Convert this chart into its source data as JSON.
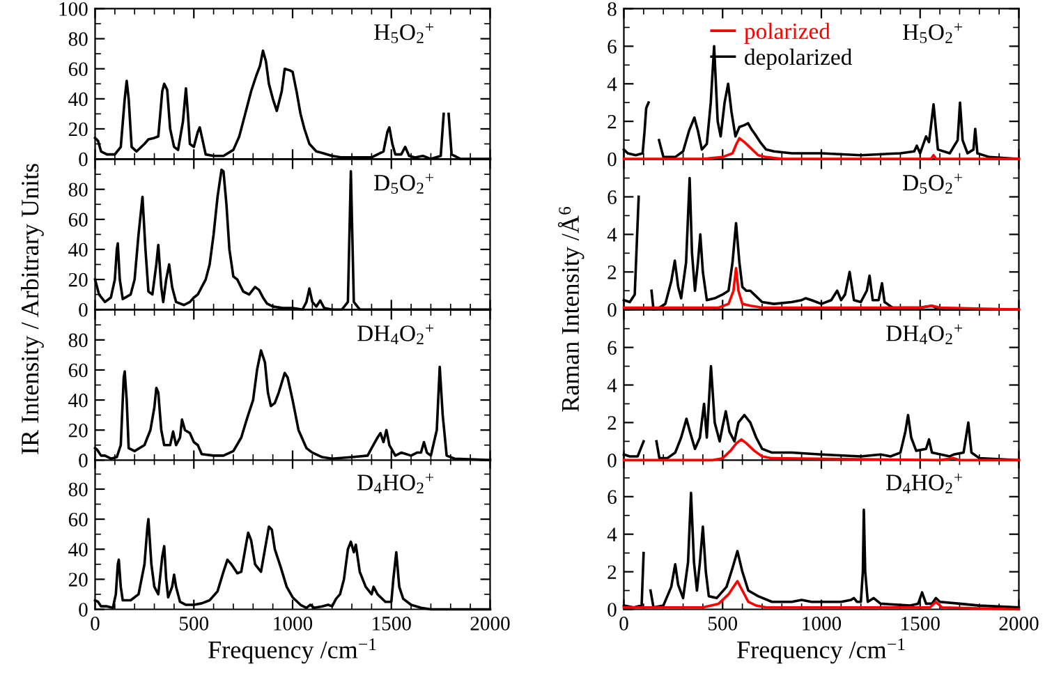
{
  "chart_data": [
    {
      "type": "line",
      "title": "H$_{5}$O$_{2}$$^{+}$",
      "ylabel": "IR Intensity / Arbitrary Units",
      "xlim": [
        0,
        2000
      ],
      "xticks": [
        0,
        500,
        1000,
        1500,
        2000
      ],
      "ylim": [
        0,
        100
      ],
      "yticks": [
        0,
        20,
        40,
        60,
        80,
        100
      ],
      "tick_labels": "y",
      "series": [
        {
          "color": "#000000",
          "x": [
            0,
            15,
            30,
            60,
            100,
            130,
            150,
            160,
            170,
            185,
            210,
            250,
            270,
            300,
            320,
            340,
            350,
            365,
            380,
            400,
            420,
            445,
            460,
            470,
            480,
            500,
            520,
            530,
            545,
            560,
            600,
            650,
            700,
            730,
            760,
            790,
            815,
            835,
            850,
            865,
            880,
            900,
            920,
            945,
            960,
            985,
            1000,
            1020,
            1040,
            1060,
            1085,
            1120,
            1150,
            1200,
            1250,
            1300,
            1400,
            1460,
            1480,
            1490,
            1505,
            1520,
            1550,
            1570,
            1590,
            1620,
            1660,
            1700,
            1750,
            1765,
            1778,
            1790,
            1805,
            1850,
            2000
          ],
          "values": [
            14,
            12,
            5,
            3,
            3,
            8,
            40,
            52,
            40,
            8,
            5,
            10,
            13,
            14,
            15,
            45,
            50,
            46,
            20,
            8,
            6,
            25,
            47,
            30,
            10,
            8,
            18,
            21,
            12,
            3,
            2,
            2,
            6,
            15,
            30,
            45,
            55,
            62,
            72,
            65,
            50,
            40,
            32,
            45,
            60,
            59,
            58,
            45,
            30,
            20,
            10,
            5,
            4,
            2,
            1,
            1,
            1,
            5,
            18,
            21,
            10,
            3,
            3,
            8,
            2,
            1,
            2,
            0,
            2,
            30,
            null,
            30,
            3,
            0,
            0
          ]
        }
      ]
    },
    {
      "type": "line",
      "title": "H$_{5}$O$_{2}$$^{+}$",
      "ylabel": "Raman Intensity /Å$^{6}$",
      "xlim": [
        0,
        2000
      ],
      "xticks": [
        0,
        500,
        1000,
        1500,
        2000
      ],
      "ylim": [
        0,
        8
      ],
      "yticks": [
        0,
        2,
        4,
        6,
        8
      ],
      "tick_labels": "y",
      "legend": "top",
      "series": [
        {
          "name": "polarized",
          "color": "#ff0000",
          "x": [
            0,
            400,
            500,
            550,
            570,
            585,
            610,
            640,
            680,
            720,
            800,
            1555,
            1568,
            1580,
            2000
          ],
          "values": [
            0,
            0,
            0.1,
            0.3,
            0.8,
            1.1,
            0.9,
            0.6,
            0.2,
            0.1,
            0,
            0,
            0.2,
            0,
            0
          ]
        },
        {
          "name": "depolarized",
          "color": "#000000",
          "x": [
            0,
            20,
            60,
            95,
            105,
            113,
            125,
            140,
            170,
            178,
            200,
            260,
            300,
            330,
            357,
            375,
            395,
            420,
            440,
            457,
            475,
            490,
            510,
            528,
            545,
            565,
            585,
            610,
            629,
            645,
            665,
            690,
            720,
            760,
            850,
            1000,
            1200,
            1400,
            1470,
            1483,
            1500,
            1530,
            1545,
            1568,
            1590,
            1650,
            1690,
            1702,
            1715,
            1740,
            1770,
            1779,
            1790,
            1850,
            2000
          ],
          "values": [
            0.5,
            0.3,
            0.2,
            0.3,
            1.5,
            2.7,
            3,
            null,
            null,
            1,
            0.1,
            0.1,
            0.4,
            1.5,
            2.2,
            1.5,
            0.5,
            0.8,
            3,
            6,
            2,
            1.2,
            3,
            4,
            2.5,
            1.2,
            1.7,
            1.8,
            1.9,
            1.6,
            1.3,
            0.9,
            0.5,
            0.4,
            0.3,
            0.3,
            0.2,
            0.3,
            0.4,
            0.7,
            0.3,
            1.2,
            0.9,
            2.9,
            0.5,
            0.3,
            1,
            3,
            1,
            0.3,
            0.5,
            1.6,
            0.3,
            0.1,
            0
          ]
        }
      ]
    },
    {
      "type": "line",
      "title": "D$_{5}$O$_{2}$$^{+}$",
      "xlim": [
        0,
        2000
      ],
      "xticks": [
        0,
        500,
        1000,
        1500,
        2000
      ],
      "ylim": [
        0,
        100
      ],
      "yticks": [
        0,
        20,
        40,
        60,
        80
      ],
      "tick_labels": "y",
      "series": [
        {
          "color": "#000000",
          "x": [
            0,
            20,
            50,
            80,
            100,
            110,
            115,
            125,
            140,
            180,
            200,
            220,
            240,
            255,
            270,
            290,
            310,
            320,
            335,
            345,
            360,
            375,
            390,
            410,
            450,
            480,
            500,
            520,
            540,
            560,
            580,
            600,
            620,
            640,
            650,
            665,
            680,
            700,
            720,
            750,
            780,
            810,
            830,
            850,
            870,
            900,
            950,
            1000,
            1050,
            1070,
            1085,
            1100,
            1120,
            1140,
            1160,
            1200,
            1250,
            1280,
            1295,
            1310,
            1340,
            2000
          ],
          "values": [
            20,
            10,
            5,
            8,
            20,
            40,
            44,
            20,
            7,
            10,
            20,
            50,
            75,
            40,
            12,
            10,
            30,
            43,
            15,
            5,
            20,
            30,
            15,
            5,
            3,
            5,
            8,
            10,
            15,
            20,
            30,
            50,
            75,
            93,
            92,
            70,
            40,
            22,
            20,
            12,
            10,
            15,
            13,
            8,
            4,
            2,
            1,
            1,
            0,
            5,
            14,
            5,
            2,
            6,
            1,
            0,
            0,
            5,
            92,
            5,
            0,
            0
          ]
        }
      ]
    },
    {
      "type": "line",
      "title": "D$_{5}$O$_{2}$$^{+}$",
      "xlim": [
        0,
        2000
      ],
      "xticks": [
        0,
        500,
        1000,
        1500,
        2000
      ],
      "ylim": [
        0,
        8
      ],
      "yticks": [
        0,
        2,
        4,
        6
      ],
      "tick_labels": "y",
      "series": [
        {
          "color": "#ff0000",
          "x": [
            0,
            400,
            480,
            530,
            555,
            568,
            580,
            600,
            640,
            700,
            1000,
            1300,
            1500,
            1560,
            1600,
            2000
          ],
          "values": [
            0.1,
            0.1,
            0.1,
            0.3,
            1,
            2.2,
            1,
            0.3,
            0.2,
            0.1,
            0.1,
            0.1,
            0.1,
            0.2,
            0.1,
            0
          ]
        },
        {
          "color": "#000000",
          "x": [
            0,
            30,
            55,
            75,
            85,
            130,
            140,
            150,
            180,
            210,
            240,
            258,
            275,
            290,
            315,
            333,
            345,
            360,
            375,
            387,
            400,
            420,
            460,
            500,
            530,
            550,
            568,
            585,
            600,
            620,
            640,
            660,
            700,
            760,
            850,
            900,
            920,
            950,
            1000,
            1050,
            1080,
            1100,
            1120,
            1143,
            1165,
            1200,
            1230,
            1244,
            1260,
            1290,
            1307,
            1320,
            1360,
            1500,
            1560,
            1580,
            1620,
            2000
          ],
          "values": [
            0.5,
            0.4,
            0.8,
            6,
            null,
            null,
            1,
            0,
            0.1,
            0.3,
            1.5,
            2.6,
            1.2,
            0.6,
            2.5,
            7,
            3,
            1,
            2.5,
            4,
            2,
            0.5,
            0.6,
            0.8,
            1,
            2.5,
            4.6,
            2.5,
            1.2,
            1,
            1,
            0.8,
            0.4,
            0.3,
            0.4,
            0.5,
            0.6,
            0.5,
            0.3,
            0.5,
            1,
            0.5,
            0.8,
            2,
            0.5,
            0.4,
            1,
            1.8,
            0.5,
            0.5,
            1.4,
            0.4,
            0.1,
            0.1,
            0.2,
            0.1,
            0,
            0
          ]
        }
      ]
    },
    {
      "type": "line",
      "title": "DH$_{4}$O$_{2}$$^{+}$",
      "xlim": [
        0,
        2000
      ],
      "xticks": [
        0,
        500,
        1000,
        1500,
        2000
      ],
      "ylim": [
        0,
        100
      ],
      "yticks": [
        0,
        20,
        40,
        60,
        80
      ],
      "tick_labels": "y",
      "series": [
        {
          "color": "#000000",
          "x": [
            0,
            10,
            30,
            50,
            80,
            110,
            130,
            145,
            150,
            160,
            170,
            200,
            250,
            280,
            300,
            310,
            320,
            335,
            350,
            380,
            395,
            410,
            430,
            440,
            455,
            480,
            500,
            520,
            540,
            600,
            650,
            700,
            740,
            770,
            800,
            820,
            840,
            860,
            875,
            890,
            910,
            930,
            960,
            975,
            1000,
            1030,
            1070,
            1100,
            1150,
            1200,
            1300,
            1380,
            1400,
            1430,
            1445,
            1460,
            1475,
            1490,
            1520,
            1550,
            1600,
            1630,
            1650,
            1665,
            1680,
            1700,
            1730,
            1745,
            1760,
            1780,
            1820,
            2000
          ],
          "values": [
            8,
            7,
            3,
            3,
            1,
            2,
            10,
            55,
            59,
            40,
            8,
            6,
            10,
            20,
            35,
            48,
            45,
            20,
            10,
            10,
            19,
            10,
            15,
            27,
            20,
            18,
            12,
            10,
            4,
            3,
            3,
            6,
            15,
            28,
            40,
            60,
            73,
            65,
            45,
            36,
            38,
            45,
            58,
            55,
            40,
            20,
            8,
            5,
            2,
            1,
            2,
            3,
            8,
            15,
            18,
            12,
            20,
            10,
            3,
            5,
            3,
            5,
            5,
            12,
            5,
            3,
            20,
            62,
            30,
            3,
            1,
            0
          ]
        }
      ]
    },
    {
      "type": "line",
      "title": "DH$_{4}$O$_{2}$$^{+}$",
      "xlim": [
        0,
        2000
      ],
      "xticks": [
        0,
        500,
        1000,
        1500,
        2000
      ],
      "ylim": [
        0,
        8
      ],
      "yticks": [
        0,
        2,
        4,
        6
      ],
      "tick_labels": "y",
      "series": [
        {
          "color": "#ff0000",
          "x": [
            0,
            450,
            500,
            540,
            570,
            595,
            620,
            660,
            700,
            750,
            1600,
            1670,
            1700,
            2000
          ],
          "values": [
            0,
            0,
            0.1,
            0.5,
            0.9,
            1.1,
            0.9,
            0.5,
            0.2,
            0.1,
            0,
            0.1,
            0,
            0
          ]
        },
        {
          "color": "#000000",
          "x": [
            0,
            30,
            70,
            100,
            115,
            155,
            165,
            180,
            220,
            260,
            290,
            317,
            335,
            360,
            385,
            406,
            420,
            441,
            460,
            485,
            500,
            516,
            535,
            560,
            580,
            610,
            640,
            670,
            700,
            750,
            850,
            1000,
            1200,
            1300,
            1350,
            1400,
            1425,
            1439,
            1455,
            1480,
            1530,
            1545,
            1560,
            1650,
            1670,
            1720,
            1744,
            1760,
            1800,
            2000
          ],
          "values": [
            0.3,
            0.2,
            0.2,
            1,
            null,
            null,
            1,
            0.1,
            0.1,
            0.4,
            1.2,
            2.2,
            1.5,
            0.6,
            1.2,
            3,
            1.2,
            5,
            2,
            1,
            1.8,
            2.6,
            1.5,
            1,
            2,
            2.4,
            2,
            1.2,
            0.6,
            0.4,
            0.4,
            0.3,
            0.2,
            0.3,
            0.2,
            0.4,
            1.5,
            2.4,
            1.2,
            0.5,
            0.6,
            1.1,
            0.4,
            0.2,
            0.3,
            0.4,
            2,
            0.4,
            0.1,
            0
          ]
        }
      ]
    },
    {
      "type": "line",
      "title": "D$_{4}$HO$_{2}$$^{+}$",
      "xlabel": "Frequency /cm$^{−1}$",
      "xlim": [
        0,
        2000
      ],
      "xticks": [
        0,
        500,
        1000,
        1500,
        2000
      ],
      "ylim": [
        0,
        100
      ],
      "yticks": [
        0,
        20,
        40,
        60,
        80
      ],
      "series": [
        {
          "color": "#000000",
          "x": [
            0,
            15,
            30,
            60,
            90,
            105,
            115,
            120,
            130,
            140,
            180,
            220,
            250,
            265,
            270,
            285,
            300,
            320,
            340,
            350,
            360,
            370,
            390,
            400,
            410,
            430,
            460,
            500,
            540,
            580,
            620,
            650,
            670,
            690,
            720,
            740,
            760,
            775,
            790,
            810,
            840,
            860,
            880,
            895,
            910,
            940,
            970,
            1000,
            1040,
            1070,
            1090,
            1110,
            1150,
            1180,
            1200,
            1220,
            1240,
            1260,
            1280,
            1295,
            1310,
            1320,
            1340,
            1370,
            1400,
            1410,
            1430,
            1470,
            1500,
            1510,
            1525,
            1540,
            1560,
            1600,
            1650,
            1700,
            2000
          ],
          "values": [
            6,
            5,
            2,
            2,
            1,
            10,
            30,
            33,
            15,
            6,
            6,
            10,
            30,
            55,
            60,
            30,
            15,
            10,
            35,
            42,
            20,
            8,
            15,
            23,
            15,
            5,
            3,
            3,
            4,
            6,
            12,
            25,
            33,
            30,
            24,
            25,
            40,
            51,
            46,
            30,
            25,
            40,
            55,
            53,
            40,
            28,
            15,
            8,
            3,
            1,
            3,
            1,
            2,
            3,
            2,
            7,
            10,
            20,
            40,
            45,
            38,
            43,
            25,
            15,
            10,
            15,
            10,
            5,
            5,
            20,
            38,
            15,
            7,
            3,
            1,
            0,
            0
          ]
        }
      ]
    },
    {
      "type": "line",
      "title": "D$_{4}$HO$_{2}$$^{+}$",
      "xlabel": "Frequency /cm$^{−1}$",
      "xlim": [
        0,
        2000
      ],
      "xticks": [
        0,
        500,
        1000,
        1500,
        2000
      ],
      "ylim": [
        0,
        8
      ],
      "yticks": [
        0,
        2,
        4,
        6
      ],
      "series": [
        {
          "color": "#ff0000",
          "x": [
            0,
            400,
            480,
            530,
            575,
            600,
            630,
            670,
            720,
            1550,
            1580,
            1610,
            2000
          ],
          "values": [
            0.1,
            0.1,
            0.3,
            0.8,
            1.5,
            1,
            0.4,
            0.2,
            0.1,
            0.1,
            0.4,
            0.1,
            0
          ]
        },
        {
          "color": "#000000",
          "x": [
            0,
            50,
            90,
            100,
            108,
            125,
            135,
            150,
            200,
            240,
            260,
            275,
            300,
            325,
            340,
            355,
            370,
            385,
            400,
            415,
            430,
            470,
            520,
            550,
            575,
            600,
            630,
            680,
            750,
            850,
            900,
            950,
            1000,
            1050,
            1100,
            1150,
            1165,
            1180,
            1200,
            1210,
            1215,
            1222,
            1235,
            1265,
            1300,
            1450,
            1490,
            1510,
            1530,
            1560,
            1580,
            1600,
            1700,
            1800,
            2000
          ],
          "values": [
            0.2,
            0.1,
            0.2,
            3,
            null,
            null,
            1,
            0.1,
            0.2,
            1.2,
            2.4,
            1.3,
            0.6,
            2.5,
            6.2,
            2.5,
            1,
            2.5,
            4.4,
            2,
            0.7,
            0.6,
            1.2,
            2.2,
            3.1,
            2,
            1,
            0.7,
            0.4,
            0.4,
            0.5,
            0.4,
            0.4,
            0.4,
            0.4,
            0.5,
            0.6,
            0.4,
            0.4,
            2,
            5.3,
            2,
            0.4,
            0.6,
            0.3,
            0.2,
            0.3,
            0.9,
            0.3,
            0.3,
            0.6,
            0.4,
            0.3,
            0.2,
            0.1
          ]
        }
      ]
    }
  ]
}
